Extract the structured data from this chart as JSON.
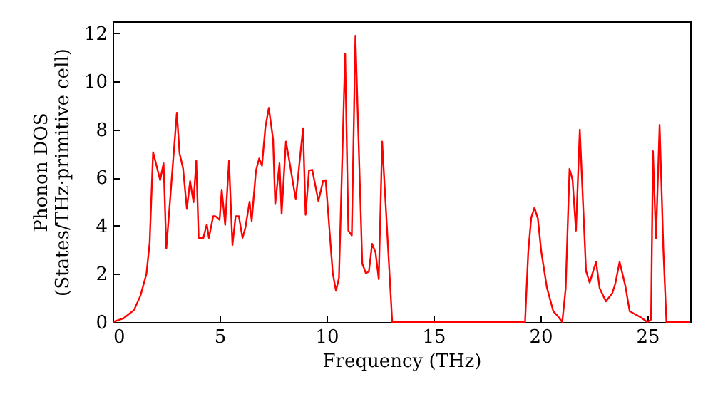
{
  "chart_data": {
    "type": "line",
    "xlabel": "Frequency (THz)",
    "ylabel": "Phonon DOS\n(States/THz·primitive cell)",
    "xlim": [
      0,
      27
    ],
    "ylim": [
      0,
      12.5
    ],
    "xticks": [
      0,
      5,
      10,
      15,
      20,
      25
    ],
    "yticks": [
      0,
      2,
      4,
      6,
      8,
      10,
      12
    ],
    "grid": false,
    "marker": "none",
    "line_style": "solid",
    "x": [
      0,
      0.5,
      1,
      1.3,
      1.58,
      1.73,
      1.89,
      2.22,
      2.38,
      2.51,
      3.0,
      3.13,
      3.29,
      3.47,
      3.62,
      3.78,
      3.91,
      4.02,
      4.24,
      4.4,
      4.5,
      4.7,
      4.8,
      5.0,
      5.1,
      5.26,
      5.44,
      5.6,
      5.75,
      5.9,
      6.07,
      6.2,
      6.4,
      6.5,
      6.7,
      6.85,
      6.98,
      7.14,
      7.3,
      7.5,
      7.6,
      7.8,
      7.9,
      8.1,
      8.26,
      8.56,
      8.9,
      9.02,
      9.18,
      9.33,
      9.62,
      9.84,
      9.96,
      10.29,
      10.44,
      10.58,
      10.87,
      11.02,
      11.18,
      11.35,
      11.67,
      11.84,
      11.98,
      12.13,
      12.29,
      12.44,
      12.6,
      13.07,
      19.28,
      19.43,
      19.57,
      19.72,
      19.88,
      20.04,
      20.3,
      20.6,
      20.8,
      21.02,
      21.18,
      21.36,
      21.5,
      21.66,
      21.84,
      22.13,
      22.3,
      22.6,
      22.77,
      23.06,
      23.36,
      23.5,
      23.7,
      23.97,
      24.17,
      24.68,
      25.0,
      25.17,
      25.26,
      25.4,
      25.57,
      25.75,
      25.89,
      27
    ],
    "series": [
      {
        "color": "#ff0000",
        "values": [
          0,
          0.15,
          0.5,
          1.1,
          2.0,
          3.3,
          7.06,
          5.9,
          6.6,
          3.06,
          8.7,
          7.0,
          6.4,
          4.7,
          5.86,
          4.98,
          6.7,
          3.5,
          3.5,
          4.06,
          3.5,
          4.4,
          4.4,
          4.25,
          5.5,
          4.04,
          6.7,
          3.2,
          4.4,
          4.4,
          3.5,
          3.9,
          5.0,
          4.2,
          6.3,
          6.8,
          6.5,
          8.1,
          8.9,
          7.6,
          4.9,
          6.6,
          4.5,
          7.5,
          6.7,
          5.1,
          8.06,
          4.46,
          6.3,
          6.33,
          5.03,
          5.88,
          5.9,
          2.03,
          1.3,
          1.83,
          11.16,
          3.8,
          3.6,
          11.9,
          2.43,
          2.03,
          2.1,
          3.25,
          2.9,
          1.78,
          7.5,
          0,
          0,
          2.92,
          4.34,
          4.75,
          4.3,
          2.92,
          1.44,
          0.45,
          0.26,
          0,
          1.4,
          6.37,
          5.92,
          3.8,
          8.0,
          2.13,
          1.64,
          2.5,
          1.4,
          0.86,
          1.2,
          1.6,
          2.5,
          1.5,
          0.45,
          0.2,
          0,
          0.1,
          7.1,
          3.47,
          8.2,
          2.92,
          0,
          0
        ]
      }
    ]
  }
}
